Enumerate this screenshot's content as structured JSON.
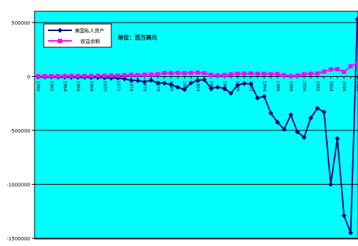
{
  "chart_data": {
    "type": "line",
    "annotation": "单位：百万美元",
    "x": [
      1960,
      1961,
      1962,
      1963,
      1964,
      1965,
      1966,
      1967,
      1968,
      1969,
      1970,
      1971,
      1972,
      1973,
      1974,
      1975,
      1976,
      1977,
      1978,
      1979,
      1980,
      1981,
      1982,
      1983,
      1984,
      1985,
      1986,
      1987,
      1988,
      1989,
      1990,
      1991,
      1992,
      1993,
      1994,
      1995,
      1996,
      1997,
      1998,
      1999,
      2000,
      2001,
      2002,
      2003,
      2004,
      2005,
      2006,
      2007,
      2008
    ],
    "x_tick_labels": [
      "1960",
      "1962",
      "1964",
      "1966",
      "1968",
      "1970",
      "1972",
      "1974",
      "1976",
      "1978",
      "1980",
      "1982",
      "1984",
      "1986",
      "1988",
      "1990",
      "1992",
      "1994",
      "1996",
      "1998",
      "2000",
      "2002",
      "2004",
      "2006",
      "2008"
    ],
    "y_tick_labels": [
      "500000",
      "0",
      "-500000",
      "-1000000",
      "-1500000"
    ],
    "ylim": [
      -1500000,
      500000
    ],
    "grid": true,
    "legend_position": "top-left",
    "series": [
      {
        "name": "美国私人资产",
        "color": "#000080",
        "marker": "diamond",
        "values": [
          -5000,
          -5000,
          -5000,
          -6000,
          -6000,
          -7000,
          -8000,
          -8000,
          -10000,
          -10000,
          -12000,
          -15000,
          -15000,
          -22000,
          -35000,
          -38000,
          -50000,
          -35000,
          -60000,
          -62000,
          -75000,
          -100000,
          -120000,
          -60000,
          -35000,
          -30000,
          -110000,
          -100000,
          -110000,
          -155000,
          -80000,
          -65000,
          -70000,
          -200000,
          -185000,
          -340000,
          -425000,
          -490000,
          -355000,
          -515000,
          -565000,
          -385000,
          -295000,
          -330000,
          -1000000,
          -575000,
          -1290000,
          -1450000,
          530000
        ]
      },
      {
        "name": "收益余额",
        "color": "#ff00ff",
        "marker": "square",
        "values": [
          3000,
          3000,
          3500,
          3500,
          4500,
          5000,
          5000,
          5000,
          5500,
          6500,
          6500,
          8000,
          8000,
          12500,
          15000,
          12500,
          16000,
          18000,
          20500,
          31000,
          30000,
          32000,
          30000,
          33000,
          35000,
          30000,
          15000,
          10000,
          14000,
          20000,
          25000,
          26000,
          28000,
          25000,
          25000,
          22000,
          22000,
          12000,
          4000,
          10000,
          21000,
          25000,
          27000,
          45000,
          65000,
          68000,
          42000,
          95000,
          120000
        ]
      }
    ]
  }
}
